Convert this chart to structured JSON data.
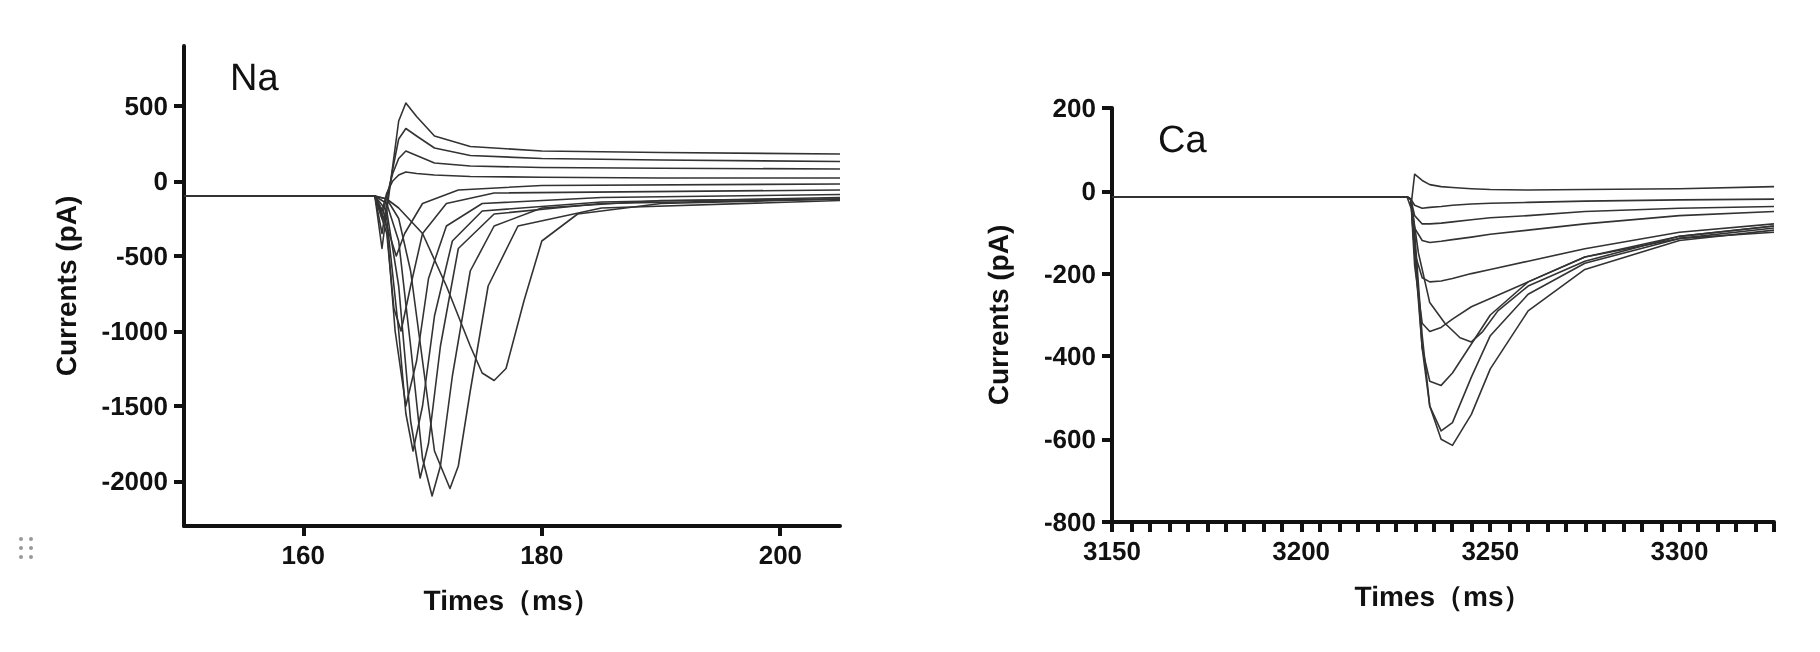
{
  "chart_data": [
    {
      "type": "line",
      "title": "Na",
      "xlabel": "Times（ms）",
      "ylabel": "Currents (pA)",
      "xlim": [
        150,
        205
      ],
      "ylim": [
        -2300,
        900
      ],
      "xticks": [
        160,
        180,
        200
      ],
      "yticks": [
        500,
        0,
        -500,
        -1000,
        -1500,
        -2000
      ],
      "marker": "none",
      "line_style": "solid",
      "series": [
        {
          "color": "#333333",
          "x": [
            150,
            166,
            167,
            168,
            169,
            170,
            170.8,
            171.5,
            172.5,
            174,
            176,
            180,
            190,
            205
          ],
          "values": [
            -100,
            -100,
            -150,
            -400,
            -1100,
            -1850,
            -2100,
            -1900,
            -1300,
            -600,
            -300,
            -180,
            -130,
            -120
          ]
        },
        {
          "color": "#333333",
          "x": [
            150,
            166,
            167,
            168,
            169,
            170,
            171,
            172.3,
            173,
            174,
            175.5,
            178,
            185,
            205
          ],
          "values": [
            -100,
            -100,
            -120,
            -250,
            -600,
            -1200,
            -1800,
            -2050,
            -1900,
            -1400,
            -700,
            -300,
            -180,
            -130
          ]
        },
        {
          "color": "#333333",
          "x": [
            150,
            166,
            167,
            168,
            169,
            169.8,
            170.5,
            171.5,
            173,
            176,
            185,
            205
          ],
          "values": [
            -100,
            -100,
            -200,
            -700,
            -1600,
            -1980,
            -1750,
            -1100,
            -450,
            -220,
            -150,
            -120
          ]
        },
        {
          "color": "#333333",
          "x": [
            150,
            166,
            167,
            168,
            168.6,
            169.2,
            170,
            171,
            172.5,
            175,
            185,
            205
          ],
          "values": [
            -100,
            -100,
            -250,
            -1000,
            -1550,
            -1800,
            -1500,
            -900,
            -400,
            -200,
            -140,
            -110
          ]
        },
        {
          "color": "#333333",
          "x": [
            150,
            166,
            167,
            167.7,
            168.6,
            169.5,
            170.5,
            172,
            175,
            185,
            205
          ],
          "values": [
            -100,
            -100,
            -300,
            -1000,
            -1500,
            -1200,
            -650,
            -300,
            -150,
            -110,
            -90
          ]
        },
        {
          "color": "#333333",
          "x": [
            150,
            166,
            167,
            168,
            170,
            172,
            174,
            175,
            176,
            177,
            178.5,
            180,
            183,
            190,
            205
          ],
          "values": [
            -100,
            -100,
            -120,
            -180,
            -350,
            -700,
            -1100,
            -1280,
            -1330,
            -1250,
            -800,
            -400,
            -220,
            -150,
            -120
          ]
        },
        {
          "color": "#333333",
          "x": [
            150,
            166,
            167,
            167.6,
            168.2,
            169,
            170,
            172,
            176,
            205
          ],
          "values": [
            -100,
            -100,
            -350,
            -850,
            -1000,
            -700,
            -350,
            -150,
            -80,
            -60
          ]
        },
        {
          "color": "#333333",
          "x": [
            150,
            166,
            167,
            167.8,
            168.5,
            170,
            173,
            180,
            205
          ],
          "values": [
            -100,
            -100,
            -300,
            -500,
            -350,
            -150,
            -60,
            -30,
            -20
          ]
        },
        {
          "color": "#333333",
          "x": [
            150,
            166,
            166.6,
            167,
            167.5,
            168,
            168.6,
            169.5,
            171,
            174,
            180,
            190,
            205
          ],
          "values": [
            -100,
            -100,
            -450,
            -200,
            100,
            400,
            520,
            430,
            300,
            230,
            200,
            190,
            180
          ]
        },
        {
          "color": "#333333",
          "x": [
            150,
            166,
            166.6,
            167,
            167.5,
            168,
            168.6,
            169.5,
            171,
            174,
            180,
            190,
            205
          ],
          "values": [
            -100,
            -100,
            -350,
            -150,
            80,
            280,
            350,
            300,
            220,
            170,
            150,
            140,
            130
          ]
        },
        {
          "color": "#333333",
          "x": [
            150,
            166,
            166.6,
            167,
            167.5,
            168,
            168.6,
            169.5,
            171,
            174,
            180,
            190,
            205
          ],
          "values": [
            -100,
            -100,
            -250,
            -100,
            50,
            150,
            200,
            170,
            120,
            100,
            90,
            85,
            80
          ]
        },
        {
          "color": "#333333",
          "x": [
            150,
            166,
            166.6,
            167,
            167.5,
            168,
            168.6,
            169.5,
            171,
            174,
            180,
            190,
            205
          ],
          "values": [
            -100,
            -100,
            -200,
            -80,
            0,
            40,
            60,
            50,
            40,
            30,
            25,
            20,
            20
          ]
        }
      ]
    },
    {
      "type": "line",
      "title": "Ca",
      "xlabel": "Times（ms）",
      "ylabel": "Currents (pA)",
      "xlim": [
        3150,
        3325
      ],
      "ylim": [
        -800,
        200
      ],
      "xticks": [
        3150,
        {
          "value": 3155,
          "label": null
        },
        {
          "value": 3160,
          "label": null
        },
        {
          "value": 3165,
          "label": null
        },
        {
          "value": 3170,
          "label": null
        },
        {
          "value": 3175,
          "label": null
        },
        {
          "value": 3180,
          "label": null
        },
        {
          "value": 3185,
          "label": null
        },
        {
          "value": 3190,
          "label": null
        },
        {
          "value": 3195,
          "label": null
        },
        3200,
        {
          "value": 3205,
          "label": null
        },
        {
          "value": 3210,
          "label": null
        },
        {
          "value": 3215,
          "label": null
        },
        {
          "value": 3220,
          "label": null
        },
        {
          "value": 3225,
          "label": null
        },
        {
          "value": 3230,
          "label": null
        },
        {
          "value": 3235,
          "label": null
        },
        {
          "value": 3240,
          "label": null
        },
        {
          "value": 3245,
          "label": null
        },
        3250,
        {
          "value": 3255,
          "label": null
        },
        {
          "value": 3260,
          "label": null
        },
        {
          "value": 3265,
          "label": null
        },
        {
          "value": 3270,
          "label": null
        },
        {
          "value": 3275,
          "label": null
        },
        {
          "value": 3280,
          "label": null
        },
        {
          "value": 3285,
          "label": null
        },
        {
          "value": 3290,
          "label": null
        },
        {
          "value": 3295,
          "label": null
        },
        3300,
        {
          "value": 3305,
          "label": null
        },
        {
          "value": 3310,
          "label": null
        },
        {
          "value": 3315,
          "label": null
        },
        {
          "value": 3320,
          "label": null
        },
        {
          "value": 3325,
          "label": null
        }
      ],
      "yticks": [
        200,
        0,
        -200,
        -400,
        -600,
        -800
      ],
      "marker": "none",
      "line_style": "solid",
      "series": [
        {
          "color": "#333333",
          "x": [
            3150,
            3228,
            3229,
            3230,
            3232,
            3234,
            3237,
            3240,
            3245,
            3250,
            3260,
            3275,
            3300,
            3325
          ],
          "values": [
            -15,
            -15,
            -20,
            -100,
            -350,
            -520,
            -600,
            -615,
            -540,
            -430,
            -290,
            -190,
            -120,
            -95
          ]
        },
        {
          "color": "#333333",
          "x": [
            3150,
            3228,
            3229,
            3230,
            3232,
            3234,
            3237,
            3240,
            3245,
            3250,
            3260,
            3275,
            3300,
            3325
          ],
          "values": [
            -15,
            -15,
            -20,
            -120,
            -380,
            -520,
            -580,
            -560,
            -450,
            -350,
            -250,
            -175,
            -115,
            -100
          ]
        },
        {
          "color": "#333333",
          "x": [
            3150,
            3228,
            3229,
            3230,
            3232,
            3234,
            3237,
            3240,
            3245,
            3250,
            3260,
            3275,
            3300,
            3325
          ],
          "values": [
            -15,
            -15,
            -20,
            -150,
            -380,
            -460,
            -470,
            -440,
            -370,
            -300,
            -220,
            -160,
            -115,
            -90
          ]
        },
        {
          "color": "#333333",
          "x": [
            3150,
            3228,
            3229,
            3231,
            3234,
            3238,
            3242,
            3245,
            3248,
            3252,
            3260,
            3275,
            3300,
            3325
          ],
          "values": [
            -15,
            -15,
            -20,
            -150,
            -270,
            -320,
            -355,
            -365,
            -340,
            -290,
            -230,
            -170,
            -110,
            -85
          ]
        },
        {
          "color": "#333333",
          "x": [
            3150,
            3228,
            3229,
            3230,
            3232,
            3234,
            3237,
            3240,
            3245,
            3250,
            3260,
            3275,
            3300,
            3325
          ],
          "values": [
            -15,
            -15,
            -20,
            -180,
            -320,
            -340,
            -330,
            -310,
            -280,
            -260,
            -220,
            -160,
            -110,
            -85
          ]
        },
        {
          "color": "#333333",
          "x": [
            3150,
            3228,
            3229,
            3230,
            3232,
            3234,
            3237,
            3240,
            3245,
            3250,
            3260,
            3275,
            3300,
            3325
          ],
          "values": [
            -15,
            -15,
            -20,
            -150,
            -210,
            -220,
            -218,
            -212,
            -200,
            -190,
            -170,
            -140,
            -100,
            -80
          ]
        },
        {
          "color": "#333333",
          "x": [
            3150,
            3228,
            3229,
            3230,
            3232,
            3234,
            3237,
            3240,
            3245,
            3250,
            3260,
            3275,
            3300,
            3325
          ],
          "values": [
            -15,
            -15,
            -20,
            -90,
            -120,
            -125,
            -122,
            -118,
            -112,
            -105,
            -95,
            -80,
            -60,
            -50
          ]
        },
        {
          "color": "#333333",
          "x": [
            3150,
            3228,
            3229,
            3230,
            3232,
            3234,
            3237,
            3240,
            3245,
            3250,
            3260,
            3275,
            3300,
            3325
          ],
          "values": [
            -15,
            -15,
            -20,
            -60,
            -80,
            -80,
            -78,
            -75,
            -70,
            -65,
            -60,
            -50,
            -42,
            -38
          ]
        },
        {
          "color": "#333333",
          "x": [
            3150,
            3228,
            3229,
            3230,
            3232,
            3234,
            3237,
            3240,
            3245,
            3250,
            3260,
            3275,
            3300,
            3325
          ],
          "values": [
            -15,
            -15,
            -20,
            -35,
            -42,
            -40,
            -38,
            -35,
            -32,
            -30,
            -28,
            -25,
            -22,
            -20
          ]
        },
        {
          "color": "#333333",
          "x": [
            3150,
            3228,
            3229,
            3230,
            3232,
            3234,
            3237,
            3240,
            3245,
            3250,
            3260,
            3275,
            3300,
            3325
          ],
          "values": [
            -15,
            -15,
            -40,
            40,
            25,
            15,
            10,
            8,
            5,
            3,
            2,
            3,
            5,
            10
          ]
        }
      ]
    }
  ]
}
